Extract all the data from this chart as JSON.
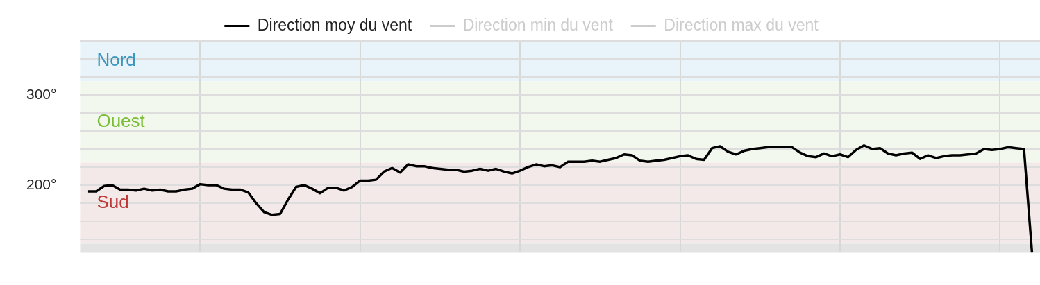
{
  "chart_data": {
    "type": "line",
    "categories": [
      null,
      null,
      null,
      null,
      null,
      null,
      null,
      null,
      null,
      null,
      null,
      null,
      null,
      null,
      null,
      null,
      null,
      null,
      null,
      null,
      null,
      null,
      null,
      null,
      null,
      null,
      null,
      null,
      null,
      null,
      null,
      null,
      null,
      null,
      null,
      null,
      null,
      null,
      null,
      null,
      null,
      null,
      null,
      null,
      null,
      null,
      null,
      null,
      null,
      null,
      null,
      null,
      null,
      null,
      null,
      null,
      null,
      null,
      null,
      null,
      null,
      null,
      null,
      null,
      null,
      null,
      null,
      null,
      null,
      null,
      null,
      null,
      null,
      null,
      null,
      null,
      null,
      null,
      null,
      null,
      null,
      null,
      null,
      null,
      null,
      null,
      null,
      null,
      null,
      null,
      null,
      null,
      null,
      null,
      null,
      null,
      null,
      null,
      null,
      null,
      null,
      null,
      null,
      null,
      null,
      null,
      null,
      null,
      null,
      null,
      null,
      null,
      null,
      null,
      null,
      null,
      null,
      null,
      null,
      null,
      null
    ],
    "series": [
      {
        "name": "Direction moy du vent",
        "color": "#000000",
        "values": [
          null,
          193,
          193,
          199,
          200,
          195,
          195,
          194,
          196,
          194,
          195,
          193,
          193,
          195,
          196,
          201,
          200,
          200,
          196,
          195,
          195,
          192,
          180,
          170,
          167,
          168,
          184,
          198,
          200,
          196,
          191,
          197,
          197,
          194,
          198,
          205,
          205,
          206,
          215,
          219,
          214,
          223,
          221,
          221,
          219,
          218,
          217,
          217,
          215,
          216,
          218,
          216,
          218,
          215,
          213,
          216,
          220,
          223,
          221,
          222,
          220,
          226,
          226,
          226,
          227,
          226,
          228,
          230,
          234,
          233,
          227,
          226,
          227,
          228,
          230,
          232,
          233,
          229,
          228,
          241,
          243,
          237,
          234,
          238,
          240,
          241,
          242,
          242,
          242,
          242,
          236,
          232,
          231,
          235,
          232,
          234,
          231,
          239,
          244,
          240,
          241,
          235,
          233,
          235,
          236,
          229,
          233,
          230,
          232,
          233,
          233,
          234,
          235,
          240,
          239,
          240,
          242,
          241,
          240,
          125,
          null
        ]
      },
      {
        "name": "Direction min du vent",
        "color": "#cccccc",
        "values": [
          null,
          null,
          null,
          null,
          null,
          null,
          null,
          null,
          null,
          null,
          null,
          null,
          null,
          null,
          null,
          null,
          null,
          null,
          null,
          null,
          null,
          null,
          null,
          null,
          null,
          null,
          null,
          null,
          null,
          null,
          null,
          null,
          null,
          null,
          null,
          null,
          null,
          null,
          null,
          null,
          null,
          null,
          null,
          null,
          null,
          null,
          null,
          null,
          null,
          null,
          null,
          null,
          null,
          null,
          null,
          null,
          null,
          null,
          null,
          null,
          null,
          null,
          null,
          null,
          null,
          null,
          null,
          null,
          null,
          null,
          null,
          null,
          null,
          null,
          null,
          null,
          null,
          null,
          null,
          null,
          null,
          null,
          null,
          null,
          null,
          null,
          null,
          null,
          null,
          null,
          null,
          null,
          null,
          null,
          null,
          null,
          null,
          null,
          null,
          null,
          null,
          null,
          null,
          null,
          null,
          null,
          null,
          null,
          null,
          null,
          null,
          null,
          null,
          null,
          null,
          null,
          null,
          null,
          null,
          null,
          null
        ]
      },
      {
        "name": "Direction max du vent",
        "color": "#cccccc",
        "values": [
          null,
          null,
          null,
          null,
          null,
          null,
          null,
          null,
          null,
          null,
          null,
          null,
          null,
          null,
          null,
          null,
          null,
          null,
          null,
          null,
          null,
          null,
          null,
          null,
          null,
          null,
          null,
          null,
          null,
          null,
          null,
          null,
          null,
          null,
          null,
          null,
          null,
          null,
          null,
          null,
          null,
          null,
          null,
          null,
          null,
          null,
          null,
          null,
          null,
          null,
          null,
          null,
          null,
          null,
          null,
          null,
          null,
          null,
          null,
          null,
          null,
          null,
          null,
          null,
          null,
          null,
          null,
          null,
          null,
          null,
          null,
          null,
          null,
          null,
          null,
          null,
          null,
          null,
          null,
          null,
          null,
          null,
          null,
          null,
          null,
          null,
          null,
          null,
          null,
          null,
          null,
          null,
          null,
          null,
          null,
          null,
          null,
          null,
          null,
          null,
          null,
          null,
          null,
          null,
          null,
          null,
          null,
          null,
          null,
          null,
          null,
          null,
          null,
          null,
          null,
          null,
          null,
          null,
          null,
          null,
          null
        ]
      }
    ],
    "ylim": [
      125,
      360
    ],
    "yticks": [
      {
        "value": 140,
        "label": null
      },
      {
        "value": 160,
        "label": null
      },
      {
        "value": 180,
        "label": null
      },
      {
        "value": 200,
        "label": "200°"
      },
      {
        "value": 220,
        "label": null
      },
      {
        "value": 240,
        "label": null
      },
      {
        "value": 260,
        "label": null
      },
      {
        "value": 280,
        "label": null
      },
      {
        "value": 300,
        "label": "300°"
      },
      {
        "value": 320,
        "label": null
      },
      {
        "value": 340,
        "label": null
      },
      {
        "value": 360,
        "label": null
      }
    ],
    "bands": [
      {
        "axis": "y",
        "from": 315,
        "to": 360,
        "label": "Nord",
        "color": "#e8f4f9"
      },
      {
        "axis": "y",
        "from": 225,
        "to": 315,
        "label": "Ouest",
        "color": "#f3f8ee"
      },
      {
        "axis": "y",
        "from": 135,
        "to": 225,
        "label": "Sud",
        "color": "#f4e9e9"
      },
      {
        "axis": "y",
        "from": 125,
        "to": 135,
        "color": "#e3e3e3"
      }
    ],
    "grid": true,
    "legend": "top",
    "marker": "none",
    "line_style": "solid"
  }
}
